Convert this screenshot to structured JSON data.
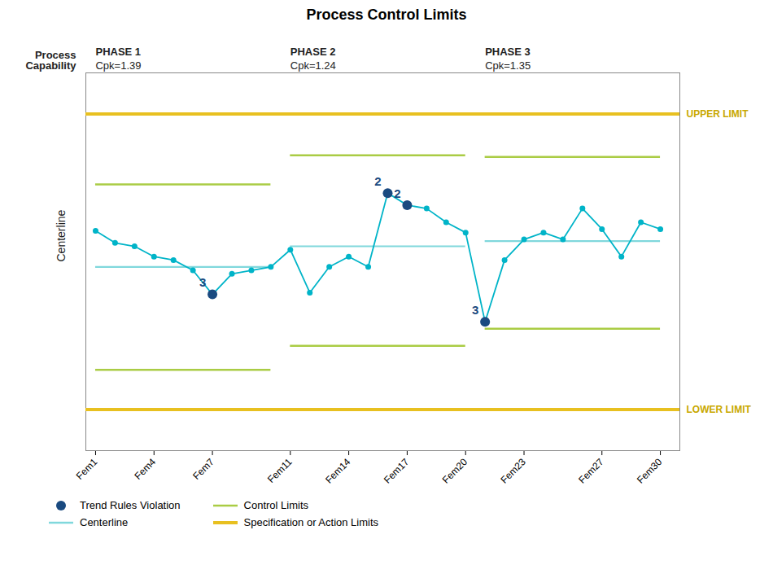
{
  "chart_data": {
    "type": "line",
    "title": "Process Control Limits",
    "y_label": "Centerline",
    "x": [
      1,
      2,
      3,
      4,
      5,
      6,
      7,
      8,
      9,
      10,
      11,
      12,
      13,
      14,
      15,
      16,
      17,
      18,
      19,
      20,
      21,
      22,
      23,
      24,
      25,
      26,
      27,
      28,
      29,
      30
    ],
    "values": [
      0.62,
      0.585,
      0.575,
      0.545,
      0.535,
      0.505,
      0.435,
      0.495,
      0.505,
      0.515,
      0.565,
      0.44,
      0.515,
      0.545,
      0.515,
      0.73,
      0.695,
      0.685,
      0.645,
      0.615,
      0.355,
      0.535,
      0.595,
      0.615,
      0.595,
      0.685,
      0.625,
      0.545,
      0.645,
      0.625
    ],
    "color": "#00B4C8",
    "marker": "circle",
    "xlim": [
      0.5,
      31.0
    ],
    "xticks": [
      {
        "value": 1,
        "label": "Fem1"
      },
      {
        "value": 4,
        "label": "Fem4"
      },
      {
        "value": 7,
        "label": "Fem7"
      },
      {
        "value": 11,
        "label": "Fem11"
      },
      {
        "value": 14,
        "label": "Fem14"
      },
      {
        "value": 17,
        "label": "Fem17"
      },
      {
        "value": 20,
        "label": "Fem20"
      },
      {
        "value": 23,
        "label": "Fem23"
      },
      {
        "value": 27,
        "label": "Fem27"
      },
      {
        "value": 30,
        "label": "Fem30"
      }
    ],
    "ylim": [
      -0.02,
      1.08
    ],
    "tick_labels": "x",
    "grid": false,
    "legend": "bottom",
    "violations": {
      "name": "Trend Rules Violation",
      "color": "#1A4A80",
      "x": [
        7,
        16,
        17,
        21
      ],
      "labels": [
        "3",
        "2",
        "2",
        "3"
      ]
    },
    "control_limits": {
      "name": "Control Limits",
      "color": "#AACC44"
    },
    "centerlines": {
      "name": "Centerline",
      "color": "#80D8DC"
    },
    "spec_limits": {
      "name": "Specification or Action Limits",
      "color": "#E8C020",
      "upper": 0.96,
      "lower": 0.1,
      "upper_label": "UPPER LIMIT",
      "lower_label": "LOWER LIMIT",
      "label_color": "#C8A800"
    },
    "capability_label": "Process\nCapability",
    "phases": [
      {
        "name": "PHASE 1",
        "capability": "Cpk=1.39",
        "x": [
          1,
          10
        ],
        "ucl": 0.755,
        "lcl": 0.215,
        "centerline": 0.515
      },
      {
        "name": "PHASE 2",
        "capability": "Cpk=1.24",
        "x": [
          11,
          20
        ],
        "ucl": 0.84,
        "lcl": 0.285,
        "centerline": 0.575
      },
      {
        "name": "PHASE 3",
        "capability": "Cpk=1.35",
        "x": [
          21,
          30
        ],
        "ucl": 0.835,
        "lcl": 0.335,
        "centerline": 0.59
      }
    ]
  }
}
